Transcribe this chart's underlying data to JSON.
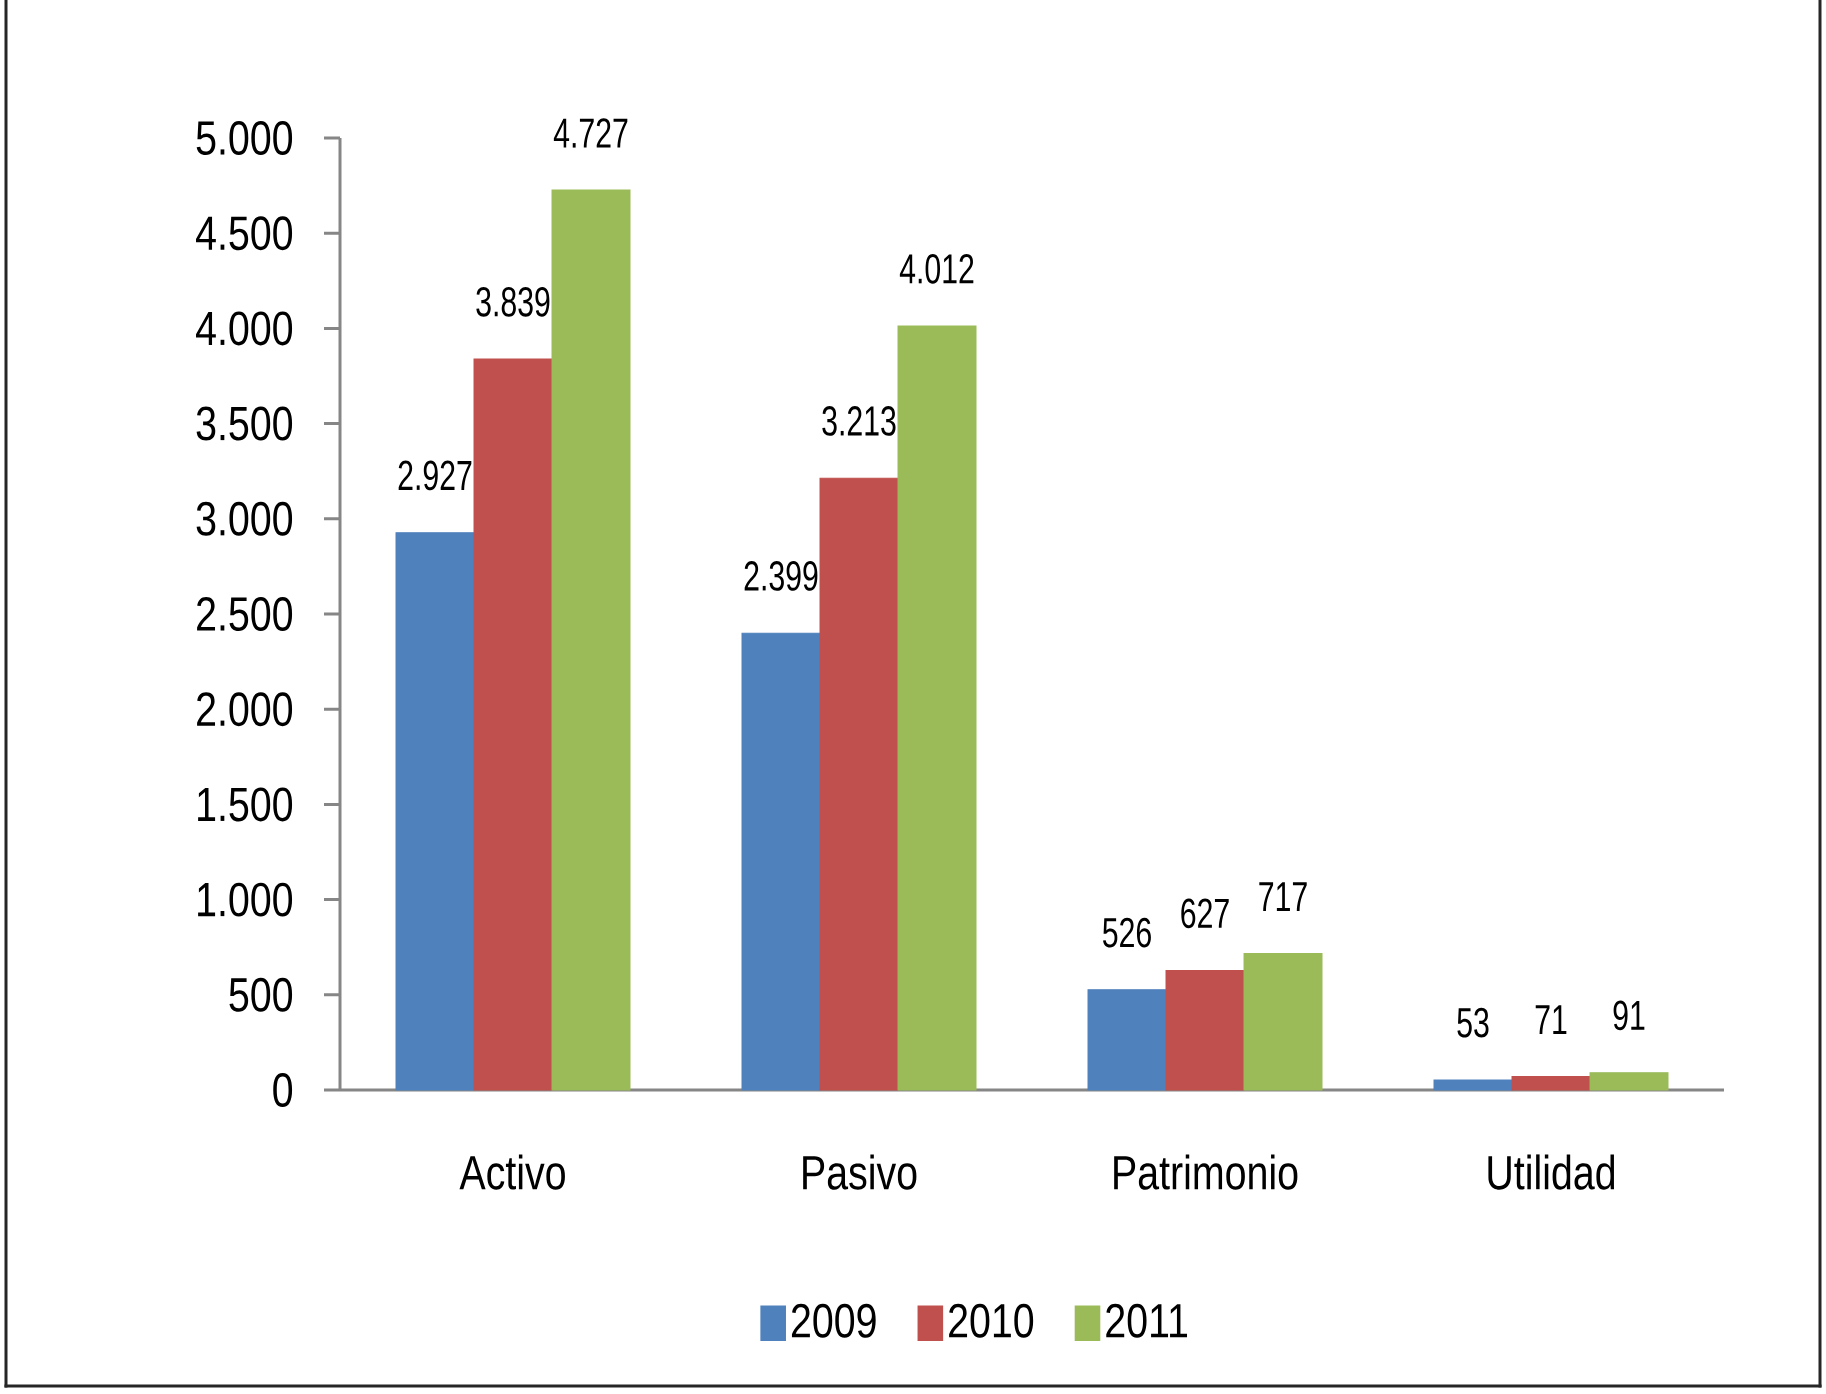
{
  "chart_data": {
    "type": "bar",
    "categories": [
      "Activo",
      "Pasivo",
      "Patrimonio",
      "Utilidad"
    ],
    "series": [
      {
        "name": "2009",
        "color": "#4f81bd",
        "values": [
          2927,
          2399,
          526,
          53
        ],
        "value_labels": [
          "2.927",
          "2.399",
          "526",
          "53"
        ]
      },
      {
        "name": "2010",
        "color": "#c0504d",
        "values": [
          3839,
          3213,
          627,
          71
        ],
        "value_labels": [
          "3.839",
          "3.213",
          "627",
          "71"
        ]
      },
      {
        "name": "2011",
        "color": "#9bbb59",
        "values": [
          4727,
          4012,
          717,
          91
        ],
        "value_labels": [
          "4.727",
          "4.012",
          "717",
          "91"
        ]
      }
    ],
    "ylim": [
      0,
      5000
    ],
    "yticks": [
      0,
      500,
      {
        "value": 1000,
        "label": "1.000"
      },
      {
        "value": 1500,
        "label": "1.500"
      },
      {
        "value": 2000,
        "label": "2.000"
      },
      {
        "value": 2500,
        "label": "2.500"
      },
      {
        "value": 3000,
        "label": "3.000"
      },
      {
        "value": 3500,
        "label": "3.500"
      },
      {
        "value": 4000,
        "label": "4.000"
      },
      {
        "value": 4500,
        "label": "4.500"
      },
      {
        "value": 5000,
        "label": "5.000"
      }
    ],
    "legend": "bottom"
  }
}
